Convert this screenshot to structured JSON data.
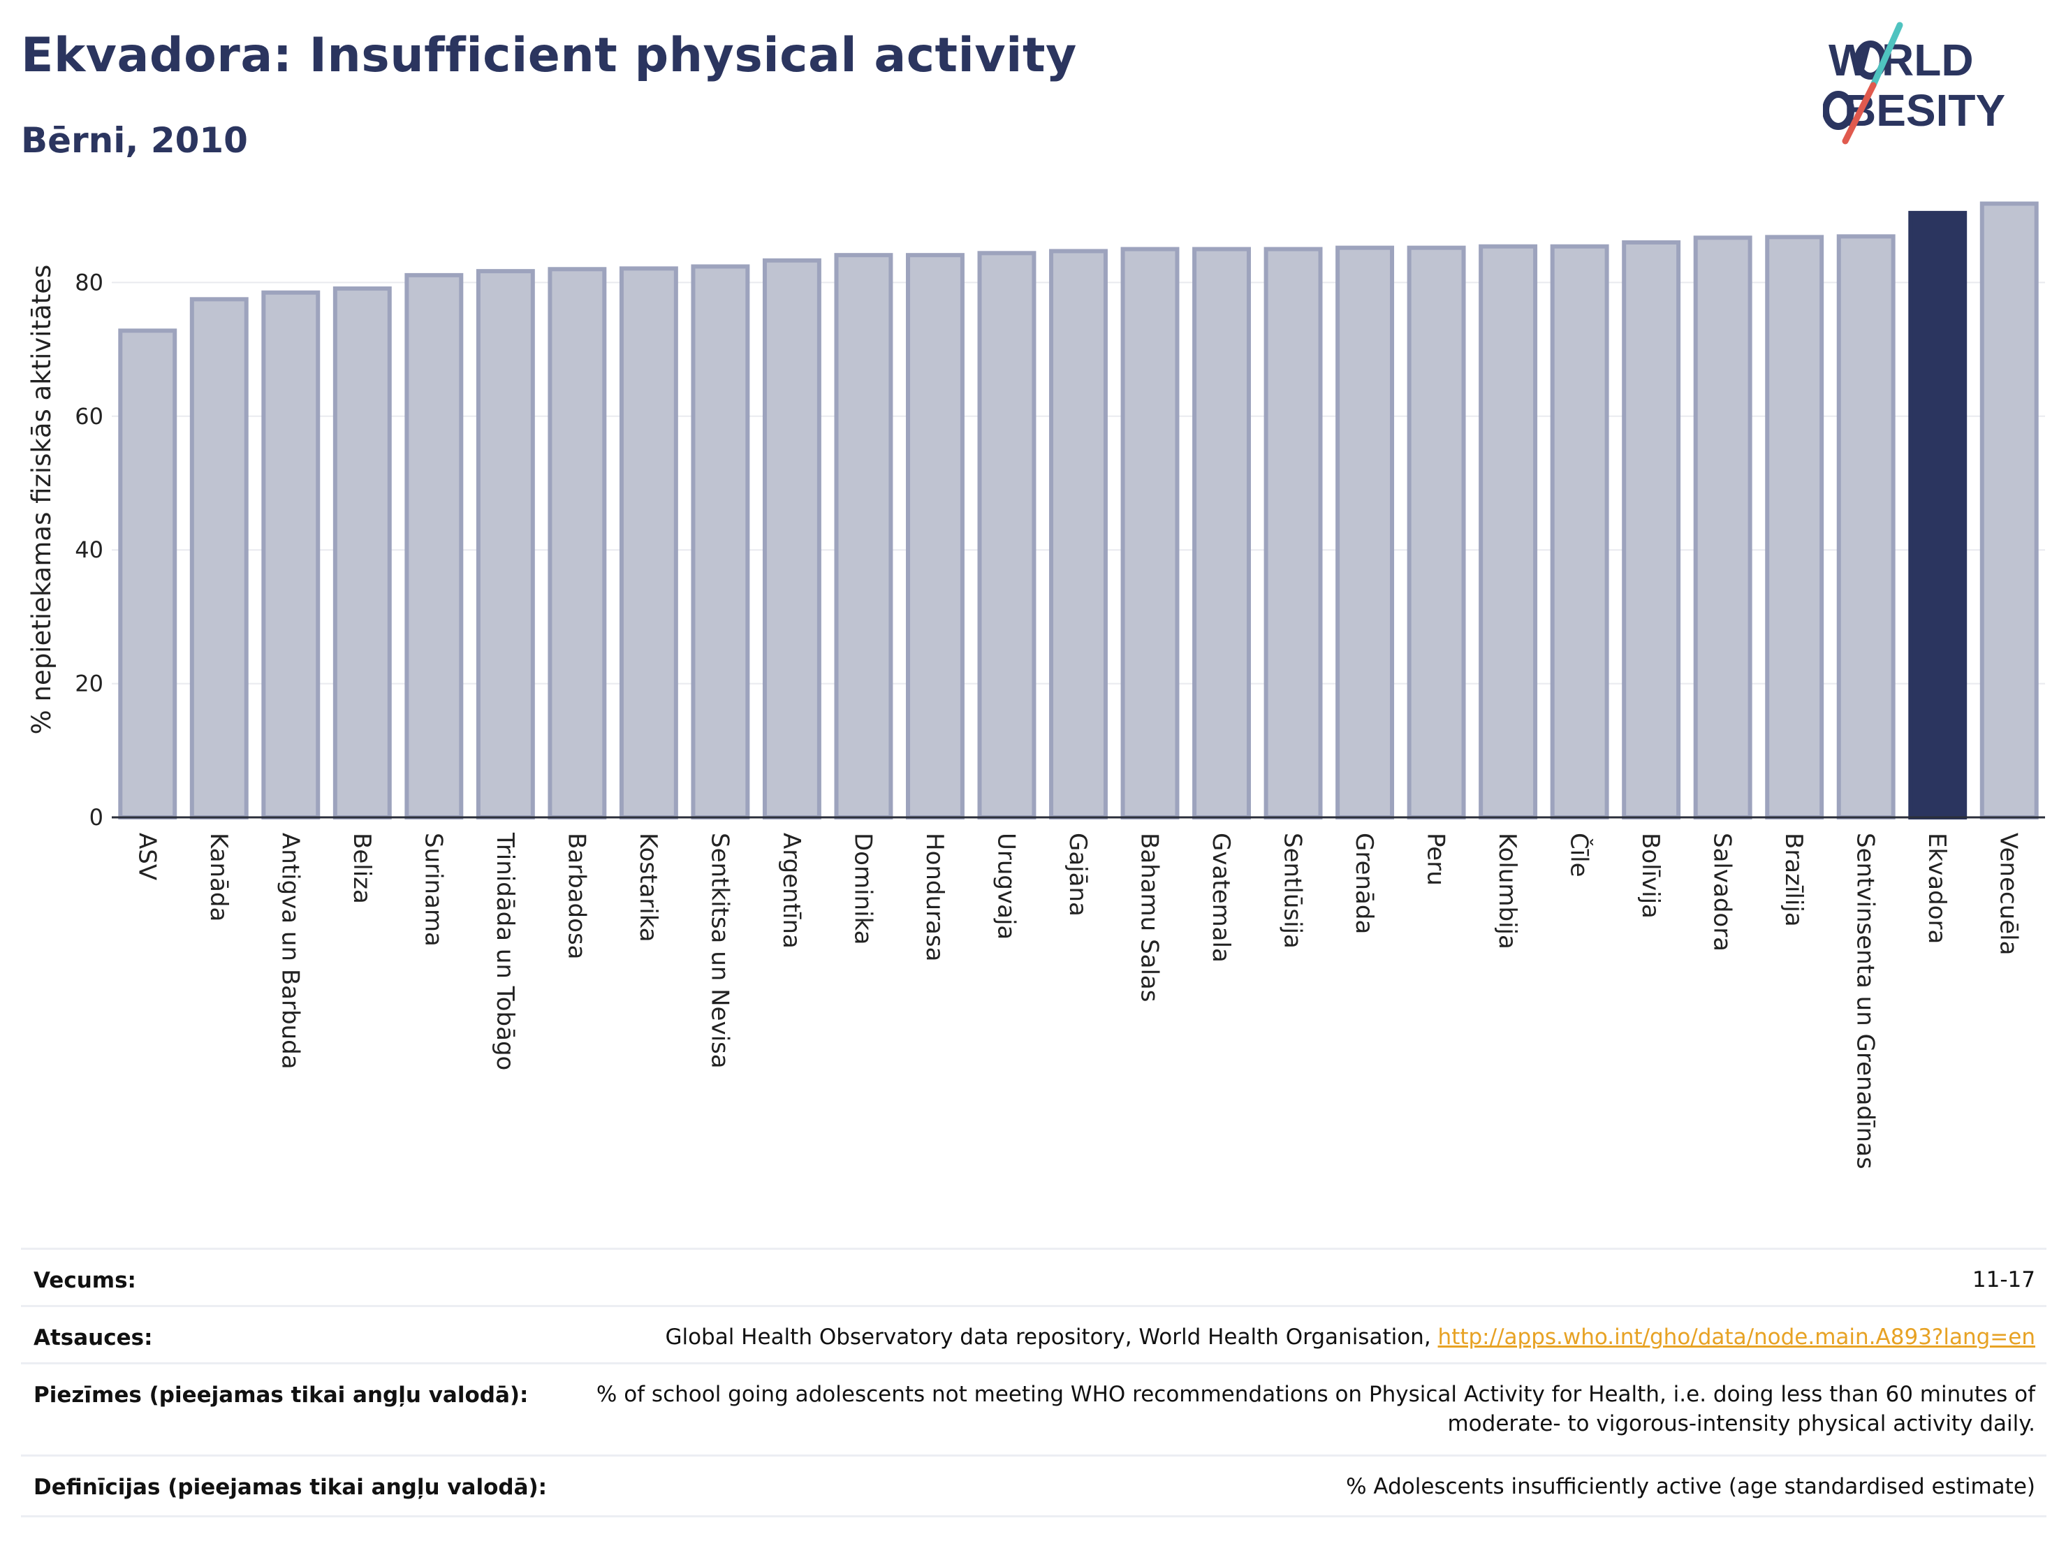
{
  "header": {
    "title": "Ekvadora: Insufficient physical activity",
    "subtitle": "Bērni, 2010"
  },
  "logo": {
    "line1": "WORLD",
    "line2": "OBESITY",
    "text_color": "#2b355f",
    "slash_colors": [
      "#4fc3c0",
      "#e05a4e"
    ]
  },
  "chart_data": {
    "type": "bar",
    "ylabel": "% nepietiekamas fiziskās aktivitātes",
    "xlabel": "",
    "ylim": [
      0,
      93
    ],
    "yticks": [
      0,
      20,
      40,
      60,
      80
    ],
    "grid": true,
    "highlight": "Ekvadora",
    "colors": {
      "bar": "#bfc3d1",
      "bar_edge": "#9da3bd",
      "highlight": "#2b355f"
    },
    "categories": [
      "ASV",
      "Kanāda",
      "Antigva un Barbuda",
      "Beliza",
      "Surinama",
      "Trinidāda un Tobāgo",
      "Barbadosa",
      "Kostarika",
      "Sentkitsa un Nevisa",
      "Argentīna",
      "Dominika",
      "Hondurasa",
      "Urugvaja",
      "Gajāna",
      "Bahamu Salas",
      "Gvatemala",
      "Sentlūsija",
      "Grenāda",
      "Peru",
      "Kolumbija",
      "Čīle",
      "Bolīvija",
      "Salvadora",
      "Brazīlija",
      "Sentvinsenta un Grenadīnas",
      "Ekvadora",
      "Venecuēla"
    ],
    "values": [
      72.8,
      77.5,
      78.5,
      79.1,
      81.1,
      81.7,
      82.0,
      82.1,
      82.4,
      83.3,
      84.1,
      84.1,
      84.4,
      84.7,
      85.0,
      85.0,
      85.0,
      85.2,
      85.2,
      85.4,
      85.4,
      86.0,
      86.7,
      86.8,
      86.9,
      90.4,
      91.8
    ]
  },
  "meta": [
    {
      "label": "Vecums:",
      "value": "11-17"
    },
    {
      "label": "Atsauces:",
      "value": "Global Health Observatory data repository, World Health Organisation, ",
      "link": "http://apps.who.int/gho/data/node.main.A893?lang=en"
    },
    {
      "label": "Piezīmes (pieejamas tikai angļu valodā):",
      "value": "% of school going adolescents not meeting WHO recommendations on Physical Activity for Health, i.e. doing less than 60 minutes of",
      "value2": "moderate- to vigorous-intensity physical activity daily."
    },
    {
      "label": "Definīcijas (pieejamas tikai angļu valodā):",
      "value": "% Adolescents insufficiently active (age standardised estimate)"
    }
  ]
}
